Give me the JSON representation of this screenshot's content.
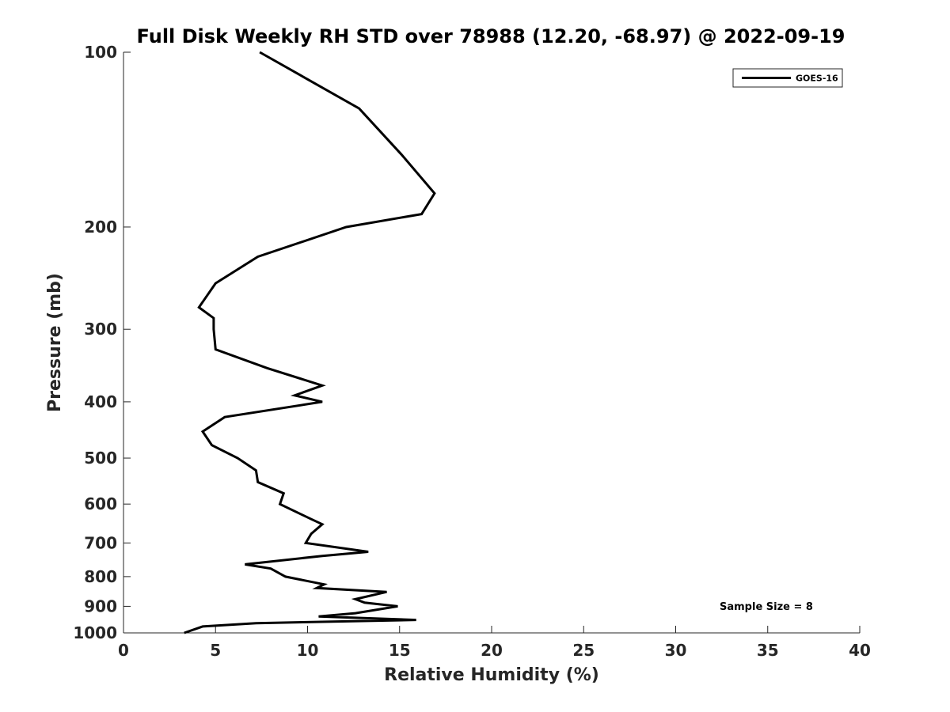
{
  "chart_data": {
    "type": "line",
    "title": "Full Disk Weekly RH STD over 78988 (12.20, -68.97) @ 2022-09-19",
    "xlabel": "Relative Humidity (%)",
    "ylabel": "Pressure (mb)",
    "xlim": [
      0,
      40
    ],
    "ylim": [
      100,
      1000
    ],
    "y_scale": "log",
    "y_reversed": true,
    "x_ticks": [
      0,
      5,
      10,
      15,
      20,
      25,
      30,
      35,
      40
    ],
    "x_tick_labels": [
      "0",
      "5",
      "10",
      "15",
      "20",
      "25",
      "30",
      "35",
      "40"
    ],
    "y_ticks": [
      100,
      200,
      300,
      400,
      500,
      600,
      700,
      800,
      900,
      1000
    ],
    "y_tick_labels": [
      "100",
      "200",
      "300",
      "400",
      "500",
      "600",
      "700",
      "800",
      "900",
      "1000"
    ],
    "grid": false,
    "legend_position": "top-right",
    "series": [
      {
        "name": "GOES-16",
        "color": "#000000",
        "x": [
          7.4,
          12.8,
          15.1,
          16.9,
          16.2,
          12.1,
          7.3,
          5.0,
          4.1,
          4.9,
          4.9,
          5.0,
          7.8,
          10.8,
          9.3,
          10.8,
          5.5,
          4.3,
          4.8,
          6.2,
          7.2,
          7.3,
          8.7,
          8.5,
          10.2,
          10.8,
          10.2,
          9.9,
          13.3,
          10.8,
          6.6,
          8.0,
          8.8,
          10.9,
          10.5,
          14.3,
          12.6,
          13.1,
          14.9,
          12.6,
          10.6,
          15.9,
          7.2,
          4.3,
          3.3
        ],
        "y": [
          100,
          125,
          150,
          175,
          190,
          200,
          225,
          250,
          275,
          287,
          300,
          325,
          350,
          375,
          390,
          400,
          425,
          450,
          475,
          500,
          525,
          550,
          575,
          600,
          637,
          650,
          675,
          700,
          725,
          737,
          762,
          775,
          800,
          825,
          837,
          850,
          875,
          887,
          900,
          925,
          937,
          950,
          962,
          975,
          1000
        ]
      }
    ],
    "annotations": [
      "Sample Size = 8"
    ]
  }
}
